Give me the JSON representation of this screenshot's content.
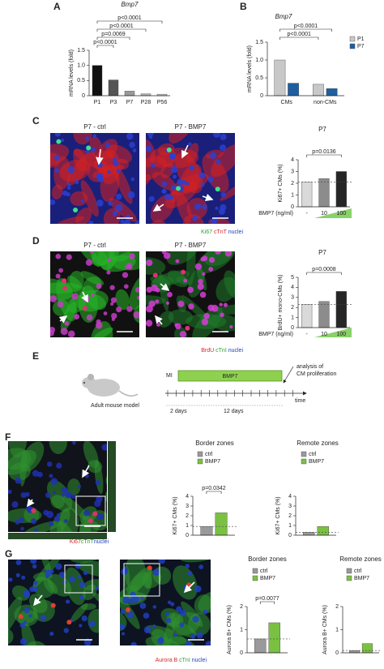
{
  "panel_labels": [
    "A",
    "B",
    "C",
    "D",
    "E",
    "F",
    "G"
  ],
  "chart_data": [
    {
      "type": "bar",
      "title": "Bmp7",
      "y_label": "mRNA levels (fold)",
      "categories": [
        "P1",
        "P3",
        "P7",
        "P28",
        "P56"
      ],
      "values": [
        1.0,
        0.52,
        0.15,
        0.06,
        0.05
      ],
      "colors": [
        "#111111",
        "#555555",
        "#999999",
        "#b5b5b5",
        "#c8c8c8"
      ],
      "ylim": [
        0,
        1.5
      ],
      "yticks": [
        0,
        0.5,
        {
          "value": 1,
          "label": "1.0"
        },
        1.5
      ],
      "annotations": [
        "p<0.0001",
        "p<0.0001",
        "p=0.0069",
        "p<0.0001"
      ]
    },
    {
      "type": "bar",
      "title": "Bmp7",
      "y_label": "mRNA levels (fold)",
      "categories": [
        "CMs",
        "non-CMs"
      ],
      "series": [
        {
          "name": "P1",
          "color": "#c8c8c8",
          "values": [
            1.0,
            0.32
          ]
        },
        {
          "name": "P7",
          "color": "#1f5fa0",
          "values": [
            0.35,
            0.2
          ]
        }
      ],
      "ylim": [
        0,
        1.5
      ],
      "yticks": [
        0,
        0.5,
        {
          "value": 1,
          "label": "1.0"
        },
        1.5
      ],
      "annotations": [
        "p<0.0001",
        "p<0.0001"
      ]
    },
    {
      "type": "bar",
      "title": "P7",
      "y_label": "Ki67+ CMs (%)",
      "x_label": "BMP7 (ng/ml)",
      "categories": [
        "-",
        "10",
        "100"
      ],
      "values": [
        2.1,
        2.4,
        3.0
      ],
      "colors": [
        "#d9d9d9",
        "#8c8c8c",
        "#262626"
      ],
      "ylim": [
        0,
        4
      ],
      "yticks": [
        0,
        1,
        2,
        3,
        4
      ],
      "annotations": [
        "p=0.0136"
      ],
      "dashed_baseline": true
    },
    {
      "type": "bar",
      "title": "P7",
      "y_label": "BrdU+ mono-CMs (%)",
      "x_label": "BMP7 (ng/ml)",
      "categories": [
        "-",
        "10",
        "100"
      ],
      "values": [
        2.3,
        2.6,
        3.6
      ],
      "colors": [
        "#d9d9d9",
        "#8c8c8c",
        "#262626"
      ],
      "ylim": [
        0,
        5
      ],
      "yticks": [
        0,
        1,
        2,
        3,
        4,
        5
      ],
      "annotations": [
        "p=0.0008"
      ],
      "dashed_baseline": true
    },
    {
      "type": "bar",
      "title": "Border zones",
      "y_label": "Ki67+ CMs (%)",
      "categories": [
        null
      ],
      "series": [
        {
          "name": "ctrl",
          "color": "#9a9a9a",
          "values": [
            0.9
          ]
        },
        {
          "name": "BMP7",
          "color": "#7ac142",
          "values": [
            2.3
          ]
        }
      ],
      "ylim": [
        0,
        4
      ],
      "yticks": [
        0,
        1,
        2,
        3,
        4
      ],
      "annotations": [
        "p=0.0342"
      ],
      "dashed_baseline": true
    },
    {
      "type": "bar",
      "title": "Remote zones",
      "y_label": "Ki67+ CMs (%)",
      "categories": [
        null
      ],
      "series": [
        {
          "name": "ctrl",
          "color": "#9a9a9a",
          "values": [
            0.3
          ]
        },
        {
          "name": "BMP7",
          "color": "#7ac142",
          "values": [
            0.9
          ]
        }
      ],
      "ylim": [
        0,
        4
      ],
      "yticks": [
        0,
        1,
        2,
        3,
        4
      ],
      "dashed_baseline": true
    },
    {
      "type": "bar",
      "title": "Border zones",
      "y_label": "Aurora B+ CMs (%)",
      "categories": [
        null
      ],
      "series": [
        {
          "name": "ctrl",
          "color": "#9a9a9a",
          "values": [
            0.6
          ]
        },
        {
          "name": "BMP7",
          "color": "#7ac142",
          "values": [
            1.3
          ]
        }
      ],
      "ylim": [
        0,
        2
      ],
      "yticks": [
        0,
        1,
        2
      ],
      "annotations": [
        "p=0.0077"
      ],
      "dashed_baseline": true
    },
    {
      "type": "bar",
      "title": "Remote zones",
      "y_label": "Aurora B+ CMs (%)",
      "categories": [
        null
      ],
      "series": [
        {
          "name": "ctrl",
          "color": "#9a9a9a",
          "values": [
            0.1
          ]
        },
        {
          "name": "BMP7",
          "color": "#7ac142",
          "values": [
            0.4
          ]
        }
      ],
      "ylim": [
        0,
        2
      ],
      "yticks": [
        0,
        1,
        2
      ],
      "dashed_baseline": true
    }
  ],
  "images": {
    "c_left": "P7 - ctrl",
    "c_right": "P7 - BMP7",
    "d_left": "P7 - ctrl",
    "d_right": "P7 - BMP7"
  },
  "stain_captions": [
    [
      {
        "text": "Ki67",
        "color": "#2ca02c"
      },
      {
        "text": " cTnT",
        "color": "#d62728"
      },
      {
        "text": " nuclei",
        "color": "#1f3fbf"
      }
    ],
    [
      {
        "text": "BrdU",
        "color": "#d62728"
      },
      {
        "text": " cTnI",
        "color": "#2ca02c"
      },
      {
        "text": " nuclei",
        "color": "#1f3fbf"
      }
    ],
    [
      {
        "text": "Ki67",
        "color": "#d62728"
      },
      {
        "text": "cTnT",
        "color": "#2ca02c"
      },
      {
        "text": "nuclei",
        "color": "#1f3fbf"
      }
    ],
    [
      {
        "text": "Aurora B",
        "color": "#d62728"
      },
      {
        "text": " cTnI",
        "color": "#2ca02c"
      },
      {
        "text": " nuclei",
        "color": "#1f3fbf"
      }
    ]
  ],
  "timeline": {
    "model": "Adult mouse model",
    "injury": "MI",
    "treatment": "BMP7",
    "analysis": [
      "analysis of",
      "CM proliferation"
    ],
    "axis": "time",
    "interval_1": "2 days",
    "interval_2": "12 days"
  }
}
